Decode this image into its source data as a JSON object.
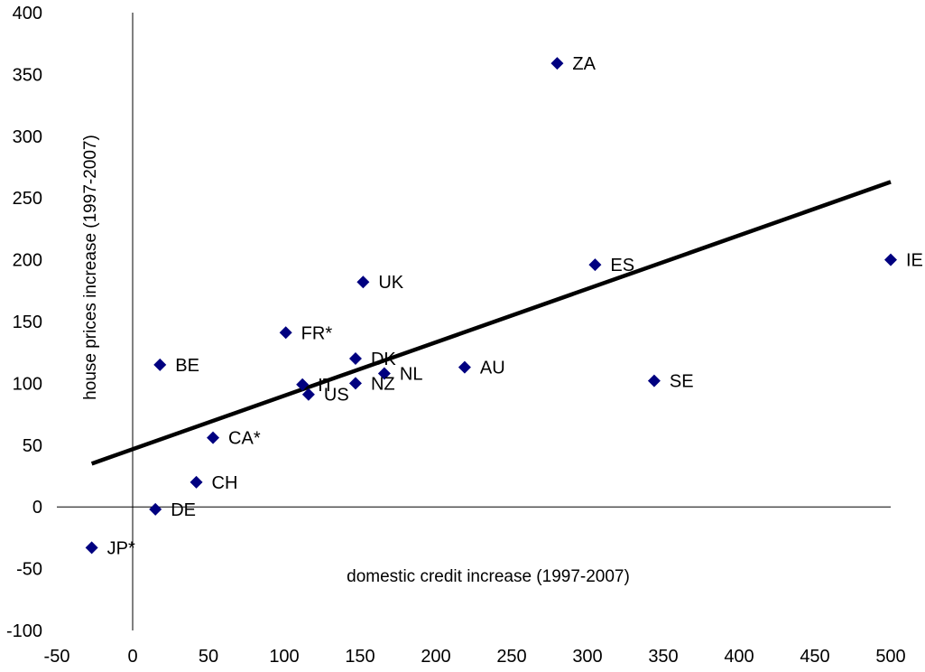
{
  "chart_data": {
    "type": "scatter",
    "title": "",
    "xlabel": "domestic credit increase (1997-2007)",
    "ylabel": "house prices increase (1997-2007)",
    "xlim": [
      -50,
      500
    ],
    "ylim": [
      -100,
      400
    ],
    "x_ticks": [
      "-50",
      "0",
      "50",
      "100",
      "150",
      "200",
      "250",
      "300",
      "350",
      "400",
      "450",
      "500"
    ],
    "y_ticks": [
      "400",
      "350",
      "300",
      "250",
      "200",
      "150",
      "100",
      "50",
      "0",
      "-50",
      "-100"
    ],
    "grid": false,
    "legend": "none",
    "marker_color": "#000080",
    "trendline_color": "#000000",
    "points": [
      {
        "label": "ZA",
        "x": 280,
        "y": 359
      },
      {
        "label": "IE",
        "x": 500,
        "y": 200
      },
      {
        "label": "ES",
        "x": 305,
        "y": 196
      },
      {
        "label": "UK",
        "x": 152,
        "y": 182
      },
      {
        "label": "FR*",
        "x": 101,
        "y": 141
      },
      {
        "label": "DK",
        "x": 147,
        "y": 120
      },
      {
        "label": "BE",
        "x": 18,
        "y": 115
      },
      {
        "label": "AU",
        "x": 219,
        "y": 113
      },
      {
        "label": "NL",
        "x": 166,
        "y": 108
      },
      {
        "label": "SE",
        "x": 344,
        "y": 102
      },
      {
        "label": "NZ",
        "x": 147,
        "y": 100
      },
      {
        "label": "IT",
        "x": 112,
        "y": 99
      },
      {
        "label": "US",
        "x": 116,
        "y": 91
      },
      {
        "label": "CA*",
        "x": 53,
        "y": 56
      },
      {
        "label": "CH",
        "x": 42,
        "y": 20
      },
      {
        "label": "DE",
        "x": 15,
        "y": -2
      },
      {
        "label": "JP*",
        "x": -27,
        "y": -33
      }
    ],
    "trendline": {
      "x": [
        -27,
        500
      ],
      "y": [
        35,
        263
      ]
    }
  }
}
